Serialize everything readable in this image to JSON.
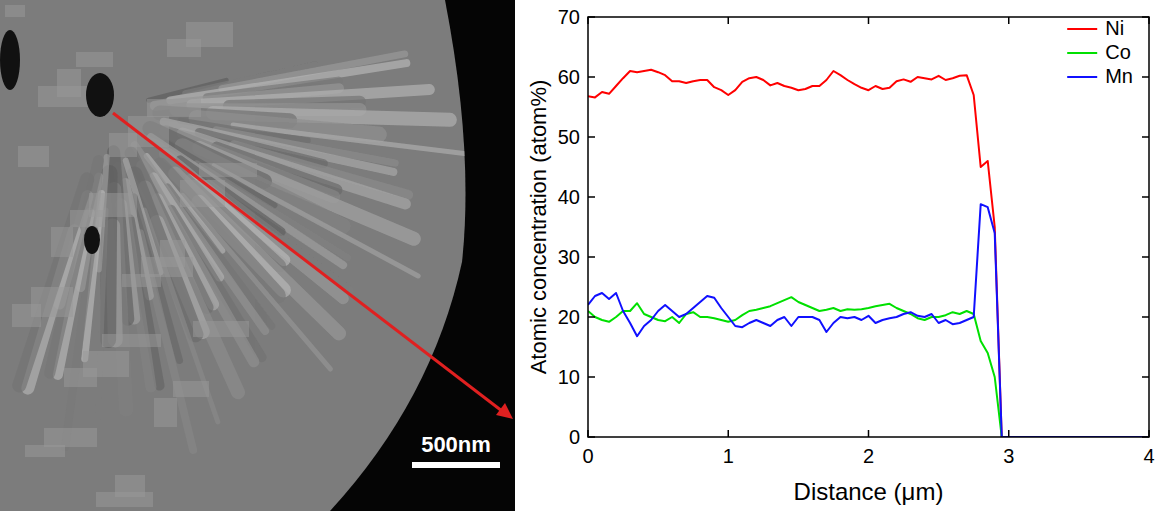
{
  "image": {
    "scale_bar": "500nm"
  },
  "chart_data": {
    "type": "line",
    "x_label": "Distance (μm)",
    "y_label": "Atomic concentration (atom%)",
    "x": [
      0,
      0.05,
      0.1,
      0.15,
      0.2,
      0.25,
      0.3,
      0.35,
      0.4,
      0.45,
      0.5,
      0.55,
      0.6,
      0.65,
      0.7,
      0.75,
      0.8,
      0.85,
      0.9,
      0.95,
      1,
      1.05,
      1.1,
      1.15,
      1.2,
      1.25,
      1.3,
      1.35,
      1.4,
      1.45,
      1.5,
      1.55,
      1.6,
      1.65,
      1.7,
      1.75,
      1.8,
      1.85,
      1.9,
      1.95,
      2,
      2.05,
      2.1,
      2.15,
      2.2,
      2.25,
      2.3,
      2.35,
      2.4,
      2.45,
      2.5,
      2.55,
      2.6,
      2.65,
      2.7,
      2.75,
      2.8,
      2.85,
      2.9,
      2.95,
      3,
      4
    ],
    "series": [
      {
        "name": "Ni",
        "color": "#ff0000",
        "values": [
          56.8,
          56.6,
          57.5,
          57.2,
          58.5,
          59.8,
          61,
          60.8,
          61,
          61.2,
          60.8,
          60.3,
          59.3,
          59.3,
          59,
          59.3,
          59.5,
          59.5,
          58.3,
          57.8,
          57,
          57.8,
          59.2,
          59.8,
          60,
          59.5,
          58.6,
          59,
          58.5,
          58.2,
          57.8,
          58,
          58.5,
          58.5,
          59.5,
          61,
          60.3,
          59.5,
          58.8,
          58.2,
          57.8,
          58.5,
          58,
          58.2,
          59.3,
          59.6,
          59.2,
          60,
          59.8,
          59.6,
          60.2,
          59.5,
          59.8,
          60.2,
          60.3,
          57,
          45,
          46,
          35,
          0,
          0,
          0
        ]
      },
      {
        "name": "Co",
        "color": "#00e000",
        "values": [
          21,
          20,
          19.5,
          19.2,
          20,
          21,
          21,
          22.3,
          20.5,
          20,
          19.5,
          19.3,
          20,
          19,
          20.5,
          20.8,
          20,
          20,
          19.8,
          19.5,
          19.2,
          19.5,
          20.3,
          21,
          21.2,
          21.5,
          21.8,
          22.3,
          22.8,
          23.3,
          22.5,
          22,
          21.5,
          21,
          21.2,
          21.5,
          21,
          21.3,
          21.2,
          21.3,
          21.5,
          21.8,
          22,
          22.2,
          21.5,
          21,
          20.5,
          19.8,
          19.5,
          20,
          20,
          20.3,
          20.8,
          20.5,
          21,
          20.5,
          16,
          14,
          10,
          0,
          0,
          0
        ]
      },
      {
        "name": "Mn",
        "color": "#1010ff",
        "values": [
          22,
          23.5,
          24,
          23,
          24,
          21,
          19,
          16.8,
          18.5,
          19.5,
          21,
          22,
          21,
          20,
          20.5,
          21.5,
          22.5,
          23.5,
          23.2,
          21.5,
          20,
          18.5,
          18.3,
          19,
          19.5,
          19,
          18.5,
          19.5,
          20,
          18.5,
          20,
          20,
          20,
          19.5,
          17.5,
          19,
          20,
          19.8,
          20,
          19.5,
          20.2,
          19,
          19.5,
          19.8,
          20,
          20.5,
          20.8,
          20.2,
          20,
          20.5,
          19,
          19.5,
          18.8,
          19,
          19.5,
          20,
          38.8,
          38.3,
          34,
          0,
          0,
          0
        ]
      }
    ],
    "xlim": [
      0,
      4
    ],
    "ylim": [
      0,
      70
    ],
    "xticks": [
      0,
      1,
      2,
      3,
      4
    ],
    "yticks": [
      0,
      10,
      20,
      30,
      40,
      50,
      60,
      70
    ],
    "legend": "upper right",
    "grid": false
  }
}
